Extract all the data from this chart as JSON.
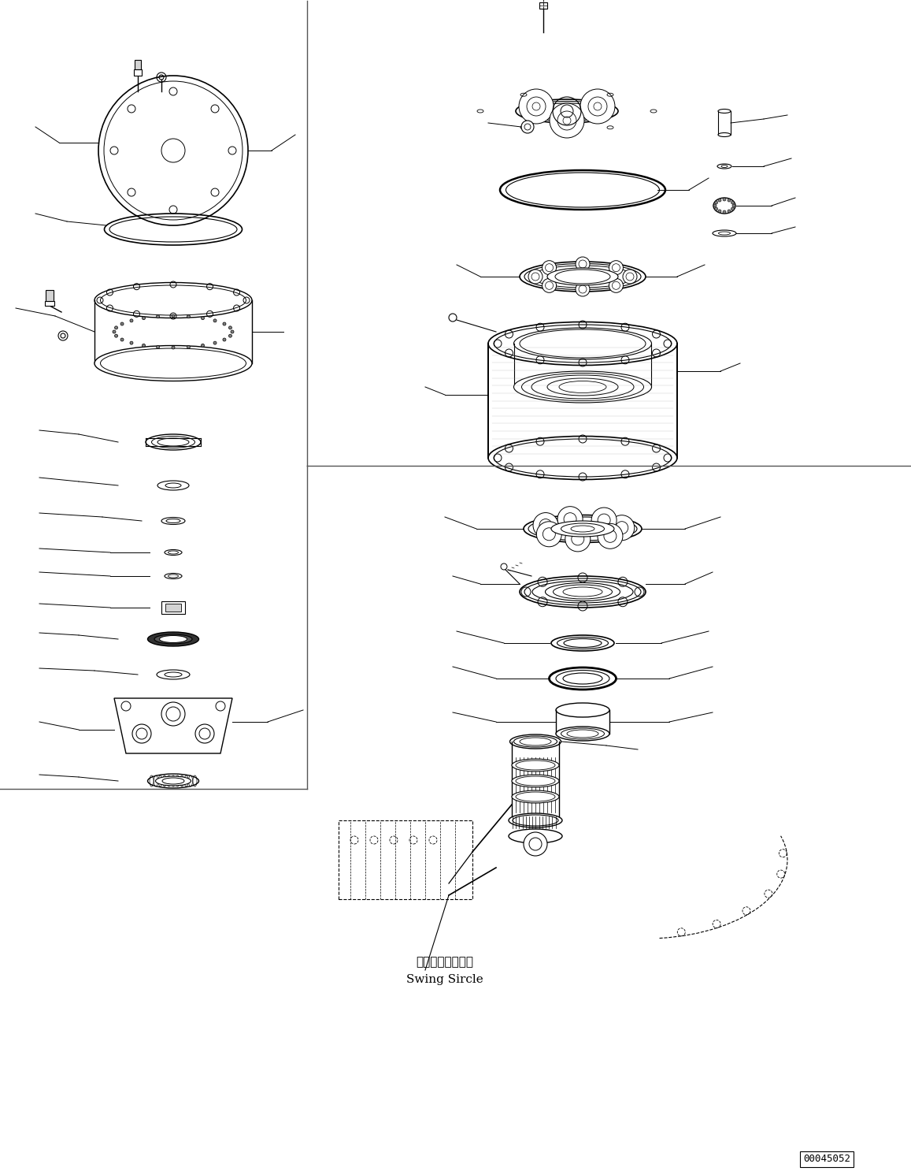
{
  "bg_color": "#ffffff",
  "line_color": "#000000",
  "fig_width": 11.57,
  "fig_height": 14.91,
  "dpi": 100,
  "part_id": "00045052",
  "swing_circle_jp": "スイングサークル",
  "swing_circle_en": "Swing Sircle"
}
